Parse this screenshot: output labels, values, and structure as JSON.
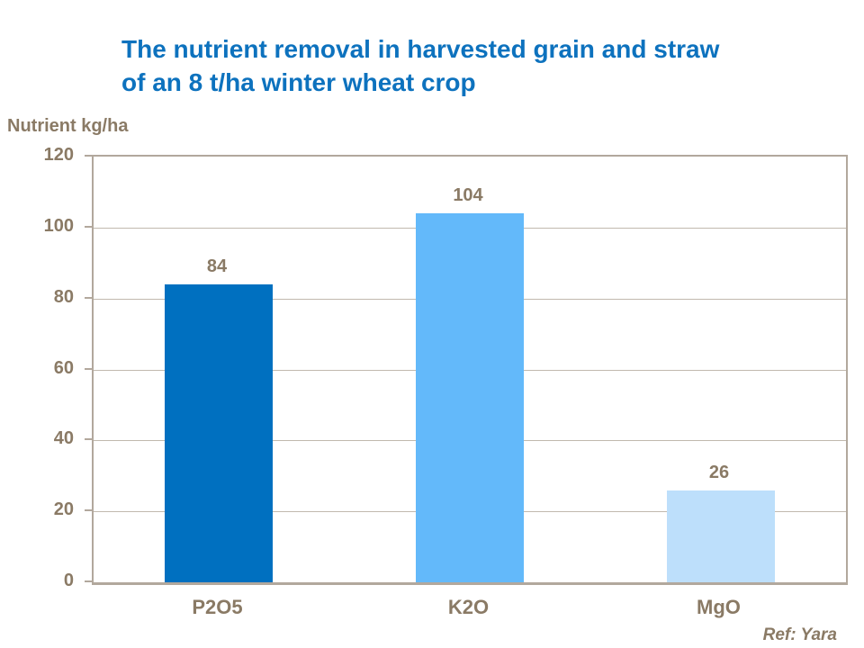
{
  "title": {
    "line1": "The nutrient removal in harvested grain and straw",
    "line2": "of an 8 t/ha winter wheat crop"
  },
  "y_axis_title": "Nutrient kg/ha",
  "footer": {
    "ref": "Ref: Yara"
  },
  "colors": {
    "title_blue": "#0d72be",
    "text_brown": "#8a7a65",
    "axis_taupe": "#b2a89d",
    "grid_taupe": "#c1b9ae",
    "bar_p2o5": "#0070c0",
    "bar_k2o": "#63b9fa",
    "bar_mgo": "#bddffb"
  },
  "chart_data": {
    "type": "bar",
    "categories": [
      "P2O5",
      "K2O",
      "MgO"
    ],
    "values": [
      84,
      104,
      26
    ],
    "bar_colors": [
      "#0070c0",
      "#63b9fa",
      "#bddffb"
    ],
    "value_labels": [
      "84",
      "104",
      "26"
    ],
    "title": "The nutrient removal in harvested grain and straw of an 8 t/ha winter wheat crop",
    "xlabel": "",
    "ylabel": "Nutrient kg/ha",
    "ylim": [
      0,
      120
    ],
    "yticks": [
      0,
      20,
      40,
      60,
      80,
      100,
      120
    ],
    "grid": true,
    "legend": false,
    "annotations": [
      "Ref: Yara"
    ]
  }
}
